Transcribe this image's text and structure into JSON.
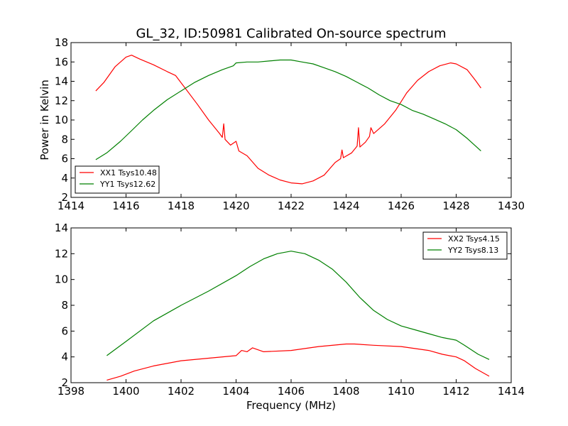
{
  "title": "GL_32, ID:50981 Calibrated On-source spectrum",
  "colors": {
    "red": "#ff0000",
    "green": "#008000"
  },
  "chart_data": [
    {
      "type": "line",
      "ylabel": "Power in Kelvin",
      "xlabel": "",
      "xlim": [
        1414,
        1430
      ],
      "ylim": [
        2,
        18
      ],
      "xticks": [
        1414,
        1416,
        1418,
        1420,
        1422,
        1424,
        1426,
        1428,
        1430
      ],
      "yticks": [
        2,
        4,
        6,
        8,
        10,
        12,
        14,
        16,
        18
      ],
      "legend_position": "lower-left",
      "series": [
        {
          "name": "XX1 Tsys10.48",
          "color": "#ff0000",
          "x": [
            1414.9,
            1415.2,
            1415.6,
            1416.0,
            1416.2,
            1416.5,
            1417.0,
            1417.5,
            1417.8,
            1418.2,
            1418.6,
            1419.0,
            1419.4,
            1419.5,
            1419.55,
            1419.6,
            1419.8,
            1420.0,
            1420.1,
            1420.4,
            1420.8,
            1421.2,
            1421.6,
            1422.0,
            1422.4,
            1422.8,
            1423.2,
            1423.6,
            1423.8,
            1423.85,
            1423.9,
            1424.2,
            1424.4,
            1424.45,
            1424.5,
            1424.7,
            1424.85,
            1424.9,
            1425.0,
            1425.4,
            1425.8,
            1426.2,
            1426.6,
            1427.0,
            1427.4,
            1427.8,
            1428.0,
            1428.4,
            1428.7,
            1428.9
          ],
          "y": [
            13.0,
            13.9,
            15.5,
            16.5,
            16.7,
            16.3,
            15.7,
            15.0,
            14.6,
            13.1,
            11.6,
            10.0,
            8.6,
            8.2,
            9.6,
            8.0,
            7.4,
            7.8,
            6.8,
            6.3,
            5.0,
            4.3,
            3.8,
            3.5,
            3.4,
            3.7,
            4.3,
            5.6,
            6.0,
            6.9,
            6.1,
            6.6,
            7.3,
            9.2,
            7.2,
            7.7,
            8.3,
            9.2,
            8.6,
            9.6,
            11.0,
            12.8,
            14.1,
            15.0,
            15.6,
            15.9,
            15.8,
            15.2,
            14.1,
            13.3
          ]
        },
        {
          "name": "YY1 Tsys12.62",
          "color": "#008000",
          "x": [
            1414.9,
            1415.3,
            1415.8,
            1416.2,
            1416.6,
            1417.0,
            1417.5,
            1418.0,
            1418.5,
            1419.0,
            1419.5,
            1419.9,
            1420.0,
            1420.4,
            1420.8,
            1421.2,
            1421.6,
            1422.0,
            1422.4,
            1422.8,
            1423.2,
            1423.6,
            1424.0,
            1424.4,
            1424.8,
            1425.2,
            1425.6,
            1426.0,
            1426.4,
            1426.8,
            1427.2,
            1427.6,
            1428.0,
            1428.4,
            1428.9
          ],
          "y": [
            5.9,
            6.6,
            7.8,
            8.9,
            10.0,
            11.0,
            12.1,
            13.0,
            13.9,
            14.6,
            15.2,
            15.6,
            15.9,
            16.0,
            16.0,
            16.1,
            16.2,
            16.2,
            16.0,
            15.8,
            15.4,
            15.0,
            14.5,
            13.9,
            13.3,
            12.6,
            12.0,
            11.6,
            11.0,
            10.6,
            10.1,
            9.6,
            9.0,
            8.1,
            6.8
          ]
        }
      ]
    },
    {
      "type": "line",
      "ylabel": "",
      "xlabel": "Frequency (MHz)",
      "xlim": [
        1398,
        1414
      ],
      "ylim": [
        2,
        14
      ],
      "xticks": [
        1398,
        1400,
        1402,
        1404,
        1406,
        1408,
        1410,
        1412,
        1414
      ],
      "yticks": [
        2,
        4,
        6,
        8,
        10,
        12,
        14
      ],
      "legend_position": "upper-right",
      "series": [
        {
          "name": "XX2 Tsys4.15",
          "color": "#ff0000",
          "x": [
            1399.3,
            1399.8,
            1400.3,
            1401.0,
            1402.0,
            1403.0,
            1404.0,
            1404.2,
            1404.4,
            1404.6,
            1405.0,
            1406.0,
            1407.0,
            1408.0,
            1408.3,
            1409.0,
            1410.0,
            1411.0,
            1411.5,
            1412.0,
            1412.3,
            1412.7,
            1413.2
          ],
          "y": [
            2.2,
            2.5,
            2.9,
            3.3,
            3.7,
            3.9,
            4.1,
            4.5,
            4.4,
            4.7,
            4.4,
            4.5,
            4.8,
            5.0,
            5.0,
            4.9,
            4.8,
            4.5,
            4.2,
            4.0,
            3.7,
            3.1,
            2.5
          ]
        },
        {
          "name": "YY2 Tsys8.13",
          "color": "#008000",
          "x": [
            1399.3,
            1400.0,
            1401.0,
            1402.0,
            1403.0,
            1404.0,
            1404.5,
            1405.0,
            1405.5,
            1406.0,
            1406.5,
            1407.0,
            1407.5,
            1408.0,
            1408.5,
            1409.0,
            1409.5,
            1410.0,
            1410.5,
            1411.0,
            1411.5,
            1412.0,
            1412.3,
            1412.8,
            1413.2
          ],
          "y": [
            4.1,
            5.2,
            6.8,
            8.0,
            9.1,
            10.3,
            11.0,
            11.6,
            12.0,
            12.2,
            12.0,
            11.5,
            10.8,
            9.8,
            8.6,
            7.6,
            6.9,
            6.4,
            6.1,
            5.8,
            5.5,
            5.3,
            4.9,
            4.2,
            3.8
          ]
        }
      ]
    }
  ]
}
